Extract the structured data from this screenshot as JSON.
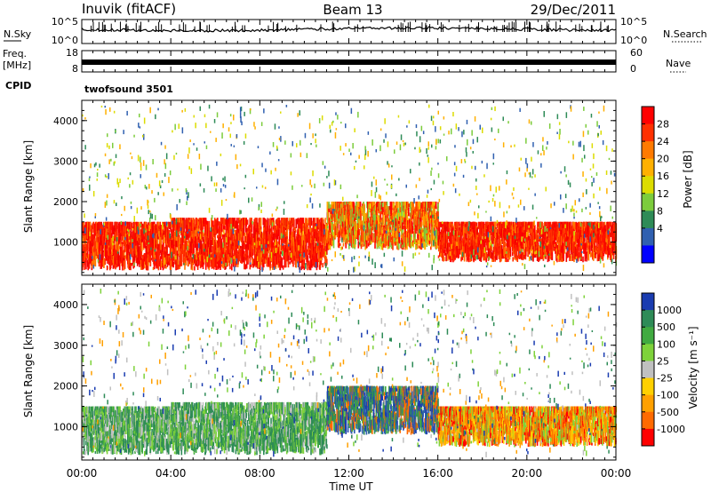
{
  "header": {
    "station": "Inuvik (fitACF)",
    "beam": "Beam 13",
    "date": "29/Dec/2011"
  },
  "noise_panel": {
    "left_label": "N.Sky",
    "right_label": "N.Search",
    "left_ticks": [
      "10^5",
      "10^0"
    ],
    "right_ticks": [
      "10^5",
      "10^0"
    ]
  },
  "freq_panel": {
    "left_label_line1": "Freq.",
    "left_label_line2": "[MHz]",
    "right_label": "Nave",
    "left_ticks": [
      "18",
      "8"
    ],
    "right_ticks": [
      "60",
      "0"
    ]
  },
  "cpid": {
    "label": "CPID",
    "program": "twofsound 3501"
  },
  "time_axis": {
    "label": "Time UT",
    "ticks": [
      "00:00",
      "04:00",
      "08:00",
      "12:00",
      "16:00",
      "20:00",
      "00:00"
    ]
  },
  "chart_data": [
    {
      "type": "heatmap",
      "panel": "power",
      "ylabel": "Slant Range [km]",
      "yticks": [
        1000,
        2000,
        3000,
        4000
      ],
      "ylim": [
        180,
        4500
      ],
      "xlim_hours": [
        0,
        24
      ],
      "colorbar_label": "Power [dB]",
      "colorbar_ticks": [
        "28",
        "24",
        "20",
        "16",
        "12",
        "8",
        "4"
      ],
      "colorbar_colors": [
        "#ff0000",
        "#ff3000",
        "#ff7a00",
        "#ffb000",
        "#dcdc00",
        "#7ccc3c",
        "#2e8b57",
        "#3060b0",
        "#0000ff"
      ],
      "echo_bands": [
        {
          "from_h": 0.0,
          "to_h": 4.0,
          "range_min": 300,
          "range_max": 1500,
          "dominant": "red"
        },
        {
          "from_h": 4.0,
          "to_h": 11.0,
          "range_min": 300,
          "range_max": 1600,
          "dominant": "red"
        },
        {
          "from_h": 11.0,
          "to_h": 16.0,
          "range_min": 800,
          "range_max": 2000,
          "dominant": "orange"
        },
        {
          "from_h": 16.0,
          "to_h": 24.0,
          "range_min": 500,
          "range_max": 1500,
          "dominant": "red"
        }
      ]
    },
    {
      "type": "heatmap",
      "panel": "velocity",
      "ylabel": "Slant Range [km]",
      "yticks": [
        1000,
        2000,
        3000,
        4000
      ],
      "ylim": [
        180,
        4500
      ],
      "xlim_hours": [
        0,
        24
      ],
      "colorbar_label": "Velocity [m s⁻¹]",
      "colorbar_ticks": [
        "1000",
        "500",
        "100",
        "25",
        "-25",
        "-100",
        "-500",
        "-1000"
      ],
      "colorbar_colors": [
        "#1a3cb0",
        "#2e8b57",
        "#40aa40",
        "#7ed23a",
        "#c0c0c0",
        "#ffd000",
        "#ffa000",
        "#ff6a00",
        "#ff0000"
      ],
      "echo_bands": [
        {
          "from_h": 0.0,
          "to_h": 4.0,
          "range_min": 300,
          "range_max": 1500,
          "dominant": "green"
        },
        {
          "from_h": 4.0,
          "to_h": 11.0,
          "range_min": 300,
          "range_max": 1600,
          "dominant": "green"
        },
        {
          "from_h": 11.0,
          "to_h": 16.0,
          "range_min": 800,
          "range_max": 2000,
          "dominant": "blue"
        },
        {
          "from_h": 16.0,
          "to_h": 24.0,
          "range_min": 500,
          "range_max": 1500,
          "dominant": "orange"
        }
      ]
    }
  ]
}
